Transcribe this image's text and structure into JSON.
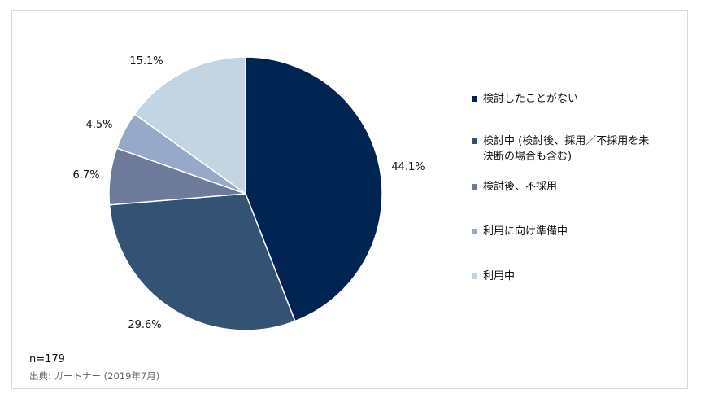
{
  "chart_data": {
    "type": "pie",
    "categories": [
      "検討したことがない",
      "検討中 (検討後、採用／不採用を未決断の場合も含む)",
      "検討後、不採用",
      "利用に向け準備中",
      "利用中"
    ],
    "values": [
      44.1,
      29.6,
      6.7,
      4.5,
      15.1
    ],
    "value_labels": [
      "44.1%",
      "29.6%",
      "6.7%",
      "4.5%",
      "15.1%"
    ],
    "colors": [
      "#002451",
      "#345274",
      "#6d7a9a",
      "#97a9c8",
      "#c3d4e2"
    ],
    "start_angle": "12 o'clock",
    "direction": "clockwise",
    "legend_position": "right"
  },
  "legend": {
    "items": [
      {
        "label": "検討したことがない"
      },
      {
        "label": "検討中 (検討後、採用／不採用を未決断の場合も含む)"
      },
      {
        "label": "検討後、不採用"
      },
      {
        "label": "利用に向け準備中"
      },
      {
        "label": "利用中"
      }
    ]
  },
  "footnote": {
    "n": "n=179",
    "source": "出典: ガートナー (2019年7月)"
  }
}
